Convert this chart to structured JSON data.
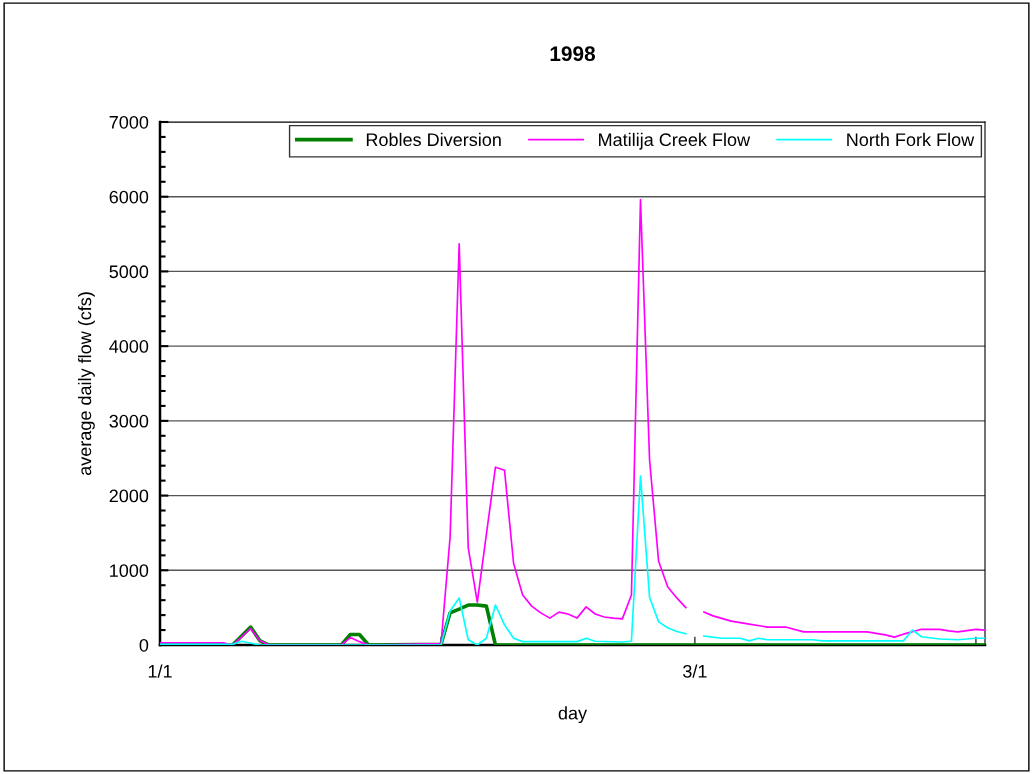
{
  "chart_data": {
    "type": "line",
    "title": "1998",
    "xlabel": "day",
    "ylabel": "average daily flow (cfs)",
    "xlim": [
      "1998-01-01",
      "1998-04-02"
    ],
    "xticks": [
      {
        "value": "1998-01-01",
        "label": "1/1"
      },
      {
        "value": "1998-02-01",
        "label": null
      },
      {
        "value": "1998-03-01",
        "label": "3/1"
      },
      {
        "value": "1998-04-01",
        "label": null
      }
    ],
    "ylim": [
      0,
      7000
    ],
    "yticks": [
      0,
      1000,
      2000,
      3000,
      4000,
      5000,
      6000,
      7000
    ],
    "grid": "y",
    "legend": "top right",
    "marker": "none",
    "line_style": "solid",
    "series": [
      {
        "name": "Robles Diversion",
        "color": "#008000",
        "x": [
          "1998-01-01",
          "1998-01-09",
          "1998-01-11",
          "1998-01-12",
          "1998-01-13",
          "1998-01-21",
          "1998-01-22",
          "1998-01-23",
          "1998-01-24",
          "1998-02-01",
          "1998-02-02",
          "1998-02-03",
          "1998-02-04",
          "1998-02-05",
          "1998-02-06",
          "1998-02-07",
          "1998-04-02"
        ],
        "values": [
          0,
          0,
          240,
          60,
          0,
          0,
          140,
          140,
          0,
          10,
          430,
          480,
          535,
          535,
          520,
          0,
          0
        ]
      },
      {
        "name": "Matilija Creek Flow",
        "color": "#ff00ff",
        "x": [
          "1998-01-01",
          "1998-01-08",
          "1998-01-09",
          "1998-01-11",
          "1998-01-12",
          "1998-01-13",
          "1998-01-21",
          "1998-01-22",
          "1998-01-23",
          "1998-01-24",
          "1998-02-01",
          "1998-02-02",
          "1998-02-03",
          "1998-02-04",
          "1998-02-05",
          "1998-02-06",
          "1998-02-07",
          "1998-02-08",
          "1998-02-09",
          "1998-02-10",
          "1998-02-11",
          "1998-02-12",
          "1998-02-13",
          "1998-02-14",
          "1998-02-15",
          "1998-02-16",
          "1998-02-17",
          "1998-02-18",
          "1998-02-19",
          "1998-02-20",
          "1998-02-21",
          "1998-02-22",
          "1998-02-23",
          "1998-02-24",
          "1998-02-25",
          "1998-02-26",
          "1998-02-27",
          "1998-02-28",
          "1998-03-01",
          "1998-03-02",
          "1998-03-03",
          "1998-03-05",
          "1998-03-07",
          "1998-03-09",
          "1998-03-11",
          "1998-03-13",
          "1998-03-20",
          "1998-03-22",
          "1998-03-23",
          "1998-03-24",
          "1998-03-26",
          "1998-03-28",
          "1998-03-29",
          "1998-03-30",
          "1998-04-01",
          "1998-04-02"
        ],
        "values": [
          30,
          30,
          0,
          220,
          60,
          0,
          0,
          100,
          45,
          0,
          20,
          1445,
          5370,
          1300,
          575,
          1480,
          2380,
          2340,
          1095,
          670,
          520,
          430,
          360,
          440,
          415,
          360,
          510,
          415,
          375,
          360,
          350,
          670,
          5960,
          2480,
          1120,
          780,
          630,
          500,
          null,
          440,
          390,
          320,
          280,
          240,
          240,
          175,
          175,
          135,
          105,
          145,
          210,
          210,
          190,
          175,
          210,
          200
        ]
      },
      {
        "name": "North Fork Flow",
        "color": "#00ffff",
        "x": [
          "1998-01-01",
          "1998-01-09",
          "1998-01-10",
          "1998-01-12",
          "1998-02-01",
          "1998-02-02",
          "1998-02-03",
          "1998-02-04",
          "1998-02-05",
          "1998-02-06",
          "1998-02-07",
          "1998-02-08",
          "1998-02-09",
          "1998-02-10",
          "1998-02-16",
          "1998-02-17",
          "1998-02-18",
          "1998-02-21",
          "1998-02-22",
          "1998-02-23",
          "1998-02-24",
          "1998-02-25",
          "1998-02-26",
          "1998-02-27",
          "1998-02-28",
          "1998-03-01",
          "1998-03-02",
          "1998-03-04",
          "1998-03-06",
          "1998-03-07",
          "1998-03-08",
          "1998-03-09",
          "1998-03-14",
          "1998-03-15",
          "1998-03-24",
          "1998-03-25",
          "1998-03-26",
          "1998-03-28",
          "1998-03-30",
          "1998-04-01",
          "1998-04-02"
        ],
        "values": [
          10,
          10,
          50,
          0,
          0,
          455,
          630,
          70,
          0,
          90,
          535,
          270,
          90,
          45,
          45,
          90,
          50,
          40,
          50,
          2260,
          640,
          310,
          230,
          180,
          150,
          null,
          120,
          90,
          90,
          55,
          90,
          70,
          70,
          55,
          55,
          200,
          110,
          80,
          70,
          90,
          90
        ]
      }
    ]
  }
}
